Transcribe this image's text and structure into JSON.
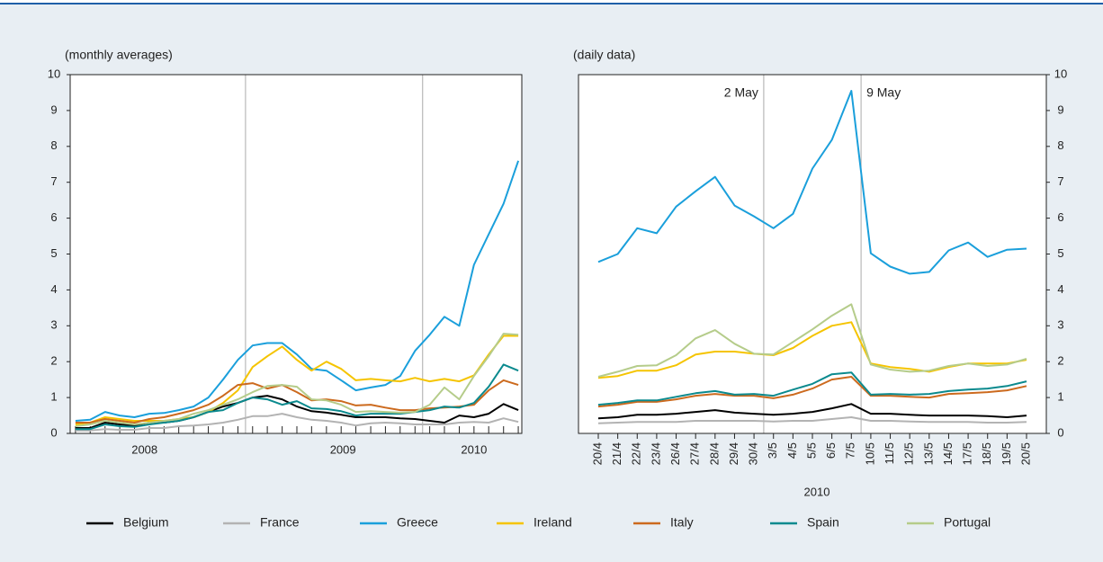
{
  "chart_data": [
    {
      "type": "line",
      "subtitle": "(monthly averages)",
      "x": [
        2008.04,
        2008.123,
        2008.207,
        2008.29,
        2008.373,
        2008.457,
        2008.54,
        2008.623,
        2008.707,
        2008.79,
        2008.873,
        2008.957,
        2009.04,
        2009.123,
        2009.207,
        2009.29,
        2009.373,
        2009.457,
        2009.54,
        2009.623,
        2009.707,
        2009.79,
        2009.873,
        2009.957,
        2010.04,
        2010.123,
        2010.207,
        2010.29,
        2010.373,
        2010.457,
        2010.54
      ],
      "xlim": [
        2008.01,
        2010.56
      ],
      "xticks": [
        {
          "value": 2008.43,
          "label": "2008"
        },
        {
          "value": 2009.55,
          "label": "2009"
        },
        {
          "value": 2010.29,
          "label": "2010"
        }
      ],
      "xgrid": [
        2009,
        2010
      ],
      "ylim": [
        0,
        10
      ],
      "yticks": [
        0,
        1,
        2,
        3,
        4,
        5,
        6,
        7,
        8,
        9,
        10
      ],
      "legend": "bottom",
      "series": [
        {
          "name": "Belgium",
          "color": "#000000",
          "values": [
            0.15,
            0.15,
            0.3,
            0.25,
            0.22,
            0.3,
            0.3,
            0.35,
            0.45,
            0.6,
            0.75,
            0.85,
            1.0,
            1.05,
            0.95,
            0.75,
            0.62,
            0.58,
            0.52,
            0.45,
            0.45,
            0.45,
            0.42,
            0.4,
            0.35,
            0.3,
            0.5,
            0.45,
            0.55,
            0.82,
            0.65
          ]
        },
        {
          "name": "France",
          "color": "#b3b3b3",
          "values": [
            0.08,
            0.08,
            0.12,
            0.1,
            0.1,
            0.15,
            0.15,
            0.2,
            0.22,
            0.25,
            0.3,
            0.38,
            0.48,
            0.48,
            0.55,
            0.45,
            0.38,
            0.35,
            0.3,
            0.22,
            0.28,
            0.3,
            0.28,
            0.25,
            0.25,
            0.25,
            0.3,
            0.32,
            0.3,
            0.42,
            0.32
          ]
        },
        {
          "name": "Greece",
          "color": "#1a9fdb",
          "values": [
            0.35,
            0.38,
            0.6,
            0.5,
            0.45,
            0.55,
            0.57,
            0.65,
            0.75,
            1.0,
            1.5,
            2.05,
            2.45,
            2.52,
            2.52,
            2.2,
            1.8,
            1.75,
            1.48,
            1.2,
            1.28,
            1.35,
            1.6,
            2.3,
            2.75,
            3.25,
            3.0,
            4.7,
            5.55,
            6.4,
            7.6
          ]
        },
        {
          "name": "Ireland",
          "color": "#f5c400",
          "values": [
            0.25,
            0.3,
            0.45,
            0.4,
            0.35,
            0.35,
            0.35,
            0.4,
            0.45,
            0.6,
            0.85,
            1.2,
            1.85,
            2.15,
            2.42,
            2.05,
            1.75,
            2.0,
            1.8,
            1.48,
            1.52,
            1.48,
            1.45,
            1.55,
            1.45,
            1.52,
            1.45,
            1.62,
            2.2,
            2.72,
            2.72
          ]
        },
        {
          "name": "Italy",
          "color": "#cc6a1e",
          "values": [
            0.3,
            0.3,
            0.4,
            0.35,
            0.3,
            0.4,
            0.45,
            0.55,
            0.65,
            0.8,
            1.05,
            1.35,
            1.4,
            1.25,
            1.35,
            1.15,
            0.92,
            0.95,
            0.9,
            0.78,
            0.8,
            0.72,
            0.65,
            0.65,
            0.7,
            0.72,
            0.75,
            0.8,
            1.2,
            1.48,
            1.35
          ]
        },
        {
          "name": "Spain",
          "color": "#0b8a8e",
          "values": [
            0.12,
            0.12,
            0.25,
            0.2,
            0.18,
            0.25,
            0.3,
            0.35,
            0.45,
            0.6,
            0.65,
            0.85,
            1.0,
            0.95,
            0.8,
            0.9,
            0.7,
            0.68,
            0.62,
            0.5,
            0.55,
            0.55,
            0.55,
            0.6,
            0.65,
            0.75,
            0.72,
            0.85,
            1.3,
            1.92,
            1.75
          ]
        },
        {
          "name": "Portugal",
          "color": "#b5cc8a",
          "values": [
            0.2,
            0.25,
            0.35,
            0.3,
            0.25,
            0.3,
            0.35,
            0.4,
            0.55,
            0.65,
            0.8,
            0.95,
            1.15,
            1.32,
            1.35,
            1.3,
            0.95,
            0.92,
            0.8,
            0.6,
            0.62,
            0.6,
            0.58,
            0.6,
            0.8,
            1.28,
            0.95,
            1.6,
            2.15,
            2.78,
            2.75
          ]
        }
      ]
    },
    {
      "type": "line",
      "subtitle": "(daily data)",
      "xlabel": "2010",
      "categories": [
        "20/4",
        "21/4",
        "22/4",
        "23/4",
        "26/4",
        "27/4",
        "28/4",
        "29/4",
        "30/4",
        "3/5",
        "4/5",
        "5/5",
        "6/5",
        "7/5",
        "10/5",
        "11/5",
        "12/5",
        "13/5",
        "14/5",
        "17/5",
        "18/5",
        "19/5",
        "20/5"
      ],
      "annotations": [
        "2 May",
        "9 May"
      ],
      "ylim": [
        0,
        10
      ],
      "yticks": [
        0,
        1,
        2,
        3,
        4,
        5,
        6,
        7,
        8,
        9,
        10
      ],
      "series": [
        {
          "color": "#000000",
          "values": [
            0.42,
            0.45,
            0.52,
            0.52,
            0.55,
            0.6,
            0.65,
            0.58,
            0.55,
            0.52,
            0.55,
            0.6,
            0.7,
            0.82,
            0.55,
            0.55,
            0.52,
            0.5,
            0.5,
            0.5,
            0.48,
            0.45,
            0.5
          ]
        },
        {
          "color": "#b3b3b3",
          "values": [
            0.28,
            0.3,
            0.32,
            0.32,
            0.32,
            0.35,
            0.35,
            0.35,
            0.35,
            0.33,
            0.35,
            0.35,
            0.4,
            0.45,
            0.35,
            0.35,
            0.33,
            0.32,
            0.32,
            0.32,
            0.3,
            0.3,
            0.32
          ]
        },
        {
          "color": "#1a9fdb",
          "values": [
            4.78,
            5.0,
            5.72,
            5.58,
            6.32,
            6.75,
            7.15,
            6.35,
            6.05,
            5.72,
            6.12,
            7.38,
            8.18,
            9.55,
            5.02,
            4.65,
            4.45,
            4.5,
            5.1,
            5.32,
            4.92,
            5.12,
            5.15
          ]
        },
        {
          "color": "#f5c400",
          "values": [
            1.55,
            1.6,
            1.75,
            1.75,
            1.9,
            2.2,
            2.28,
            2.28,
            2.22,
            2.18,
            2.38,
            2.72,
            3.0,
            3.1,
            1.95,
            1.85,
            1.8,
            1.72,
            1.85,
            1.95,
            1.95,
            1.95,
            2.05
          ]
        },
        {
          "color": "#cc6a1e",
          "values": [
            0.75,
            0.8,
            0.88,
            0.88,
            0.95,
            1.05,
            1.1,
            1.05,
            1.05,
            0.98,
            1.08,
            1.25,
            1.5,
            1.58,
            1.05,
            1.05,
            1.02,
            1.0,
            1.1,
            1.12,
            1.15,
            1.2,
            1.32
          ]
        },
        {
          "color": "#0b8a8e",
          "values": [
            0.8,
            0.85,
            0.92,
            0.92,
            1.02,
            1.12,
            1.18,
            1.08,
            1.1,
            1.05,
            1.22,
            1.38,
            1.65,
            1.7,
            1.08,
            1.1,
            1.08,
            1.1,
            1.18,
            1.22,
            1.25,
            1.32,
            1.45
          ]
        },
        {
          "color": "#b5cc8a",
          "values": [
            1.58,
            1.72,
            1.88,
            1.9,
            2.18,
            2.65,
            2.88,
            2.5,
            2.22,
            2.2,
            2.55,
            2.9,
            3.28,
            3.6,
            1.92,
            1.78,
            1.72,
            1.75,
            1.88,
            1.95,
            1.88,
            1.92,
            2.08
          ]
        }
      ]
    }
  ]
}
